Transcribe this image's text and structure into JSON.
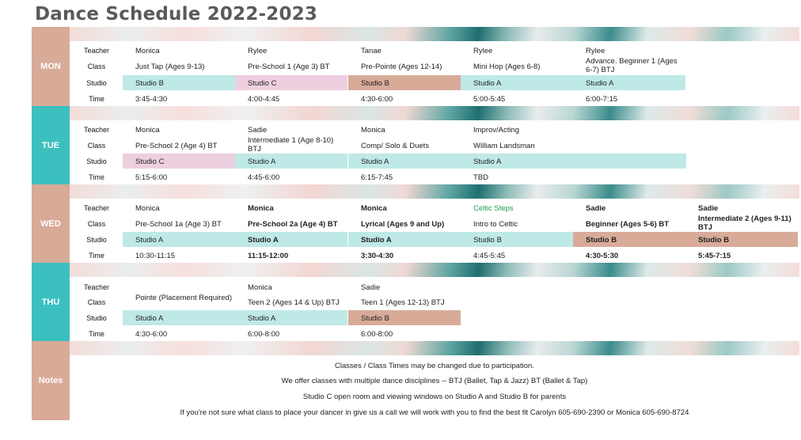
{
  "title": "Dance Schedule 2022-2023",
  "labels": {
    "teacher": "Teacher",
    "class": "Class",
    "studio": "Studio",
    "time": "Time"
  },
  "days": {
    "mon": {
      "name": "MON",
      "cols": [
        {
          "teacher": "Monica",
          "class": "Just Tap (Ages 9-13)",
          "studio": "Studio B",
          "time": "3:45-4:30"
        },
        {
          "teacher": "Rylee",
          "class": "Pre-School 1 (Age 3) BT",
          "studio": "Studio C",
          "time": "4:00-4:45"
        },
        {
          "teacher": "Tanae",
          "class": "Pre-Pointe (Ages 12-14)",
          "studio": "Studio B",
          "time": "4:30-6:00"
        },
        {
          "teacher": "Rylee",
          "class": "Mini Hop (Ages 6-8)",
          "studio": "Studio A",
          "time": "5:00-5:45"
        },
        {
          "teacher": "Rylee",
          "class": "Advance. Beginner 1 (Ages 6-7) BTJ",
          "studio": "Studio A",
          "time": "6:00-7:15"
        }
      ]
    },
    "tue": {
      "name": "TUE",
      "cols": [
        {
          "teacher": "Monica",
          "class": "Pre-School 2 (Age 4) BT",
          "studio": "Studio C",
          "time": "5:15-6:00"
        },
        {
          "teacher": "Sadie",
          "class": "Intermediate 1 (Age 8-10) BTJ",
          "studio": "Studio A",
          "time": "4:45-6:00"
        },
        {
          "teacher": "Monica",
          "class": "Comp/ Solo & Duets",
          "studio": "Studio A",
          "time": "6:15-7:45"
        },
        {
          "teacher": "Improv/Acting",
          "class": "William Landsman",
          "studio": "Studio A",
          "time": "TBD"
        }
      ]
    },
    "wed": {
      "name": "WED",
      "cols": [
        {
          "teacher": "Monica",
          "class": "Pre-School 1a (Age 3) BT",
          "studio": "Studio A",
          "time": "10:30-11:15"
        },
        {
          "teacher": "Monica",
          "class": "Pre-School 2a (Age 4) BT",
          "studio": "Studio A",
          "time": "11:15-12:00"
        },
        {
          "teacher": "Monica",
          "class": "Lyrical (Ages 9 and Up)",
          "studio": "Studio A",
          "time": "3:30-4:30"
        },
        {
          "teacher": "Celtic Steps",
          "class": "Intro to Celtic",
          "studio": "Studio B",
          "time": "4:45-5:45"
        },
        {
          "teacher": "Sadie",
          "class": "Beginner (Ages 5-6) BT",
          "studio": "Studio B",
          "time": "4:30-5:30"
        },
        {
          "teacher": "Sadie",
          "class": "Intermediate 2 (Ages 9-11) BTJ",
          "studio": "Studio B",
          "time": "5:45-7:15"
        }
      ]
    },
    "thu": {
      "name": "THU",
      "cols": [
        {
          "teacher": "",
          "class": "Pointe (Placement Required)",
          "studio": "Studio A",
          "time": "4:30-6:00"
        },
        {
          "teacher": "Monica",
          "class": "Teen 2 (Ages 14 & Up) BTJ",
          "studio": "Studio A",
          "time": "6:00-8:00"
        },
        {
          "teacher": "Sadie",
          "class": "Teen 1 (Ages 12-13) BTJ",
          "studio": "Studio B",
          "time": "6:00-8:00"
        }
      ]
    }
  },
  "notes": {
    "tab": "Notes",
    "lines": [
      "Classes / Class Times may be changed due to participation.",
      "We offer classes with multiple dance disciplines --  BTJ (Ballet, Tap & Jazz) BT (Ballet & Tap)",
      "Studio C open room and viewing windows on Studio A and Studio B for parents",
      "If you're not sure what class to place your dancer in give us a call we will work with you to find the best fit  Carolyn 605-690-2390 or Monica 605-690-8724"
    ]
  },
  "colors": {
    "teal": "#3cc0bf",
    "peach": "#d8aa98",
    "studio_a": "#bfe9e6",
    "studio_c": "#eecfdf",
    "studio_b": "#d8ab99"
  }
}
